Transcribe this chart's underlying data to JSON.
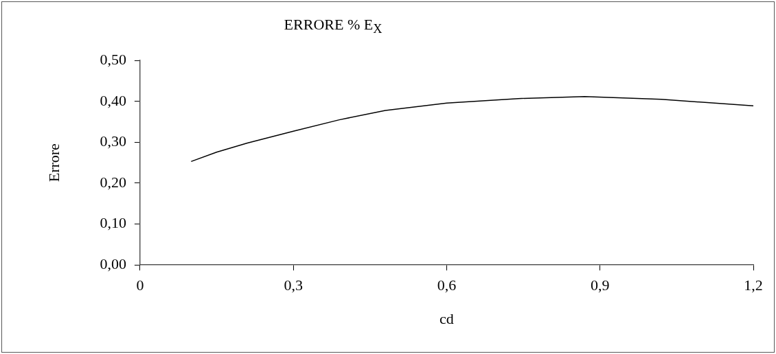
{
  "chart_data": {
    "type": "line",
    "title": "ERRORE % E$_{X}$",
    "xlabel": "cd",
    "ylabel": "Errore",
    "x": [
      0.1,
      0.15,
      0.21,
      0.3,
      0.39,
      0.48,
      0.6,
      0.74,
      0.87,
      1.02,
      1.2
    ],
    "series": [
      {
        "color": "#000000",
        "values": [
          0.253,
          0.276,
          0.298,
          0.327,
          0.355,
          0.378,
          0.396,
          0.407,
          0.412,
          0.405,
          0.389
        ]
      }
    ],
    "xlim": [
      0,
      1.2
    ],
    "xticks": [
      0,
      {
        "value": 0.3,
        "label": "0,3"
      },
      {
        "value": 0.6,
        "label": "0,6"
      },
      {
        "value": 0.9,
        "label": "0,9"
      },
      {
        "value": 1.2,
        "label": "1,2"
      }
    ],
    "ylim": [
      0,
      0.5
    ],
    "yticks": [
      {
        "value": 0,
        "label": "0,00"
      },
      {
        "value": 0.1,
        "label": "0,10"
      },
      {
        "value": 0.2,
        "label": "0,20"
      },
      {
        "value": 0.3,
        "label": "0,30"
      },
      {
        "value": 0.4,
        "label": "0,40"
      },
      {
        "value": 0.5,
        "label": "0,50"
      }
    ],
    "grid": false,
    "legend": false,
    "marker": "none",
    "line_style": "solid"
  }
}
